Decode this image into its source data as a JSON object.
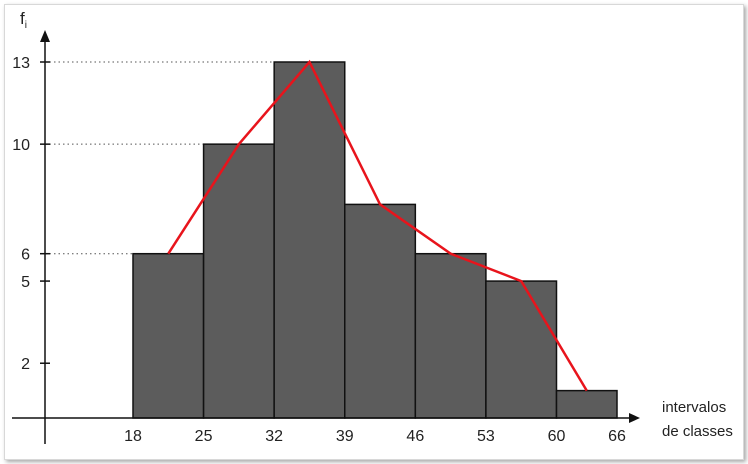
{
  "chart_data": {
    "type": "bar",
    "title": "",
    "ylabel": "f",
    "ylabel_sub": "i",
    "xlabel_line1": "intervalos",
    "xlabel_line2": "de classes",
    "x_ticks": [
      18,
      25,
      32,
      39,
      46,
      53,
      60,
      66
    ],
    "y_ticks": [
      2,
      5,
      6,
      10,
      13
    ],
    "y_dotted_guides": [
      6,
      10,
      13
    ],
    "bins": [
      {
        "from": 18,
        "to": 25,
        "value": 6
      },
      {
        "from": 25,
        "to": 32,
        "value": 10
      },
      {
        "from": 32,
        "to": 39,
        "value": 13
      },
      {
        "from": 39,
        "to": 46,
        "value": 7.8
      },
      {
        "from": 46,
        "to": 53,
        "value": 6
      },
      {
        "from": 53,
        "to": 60,
        "value": 5
      },
      {
        "from": 60,
        "to": 66,
        "value": 1
      }
    ],
    "polygon": {
      "name": "",
      "points": [
        [
          21.5,
          6
        ],
        [
          28.5,
          10
        ],
        [
          35.5,
          13
        ],
        [
          42.5,
          7.8
        ],
        [
          49.5,
          6
        ],
        [
          56.5,
          5
        ],
        [
          63,
          1
        ]
      ]
    },
    "ylim": [
      0,
      13
    ],
    "colors": {
      "bar_fill": "#5c5c5c",
      "bar_stroke": "#111111",
      "polygon": "#e8141c",
      "axis": "#111111"
    }
  }
}
